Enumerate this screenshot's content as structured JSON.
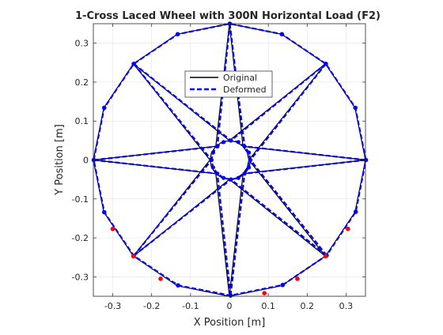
{
  "chart_data": {
    "type": "line",
    "title": "1-Cross Laced Wheel with 300N Horizontal Load (F2)",
    "xlabel": "X Position [m]",
    "ylabel": "Y Position [m]",
    "xlim": [
      -0.35,
      0.35
    ],
    "ylim": [
      -0.35,
      0.35
    ],
    "xticks": [
      -0.3,
      -0.2,
      -0.1,
      0,
      0.1,
      0.2,
      0.3
    ],
    "yticks": [
      -0.3,
      -0.2,
      -0.1,
      0,
      0.1,
      0.2,
      0.3
    ],
    "grid": true,
    "legend": {
      "location": "upper center",
      "entries": [
        "Original",
        "Deformed"
      ]
    },
    "colors": {
      "original": "#000000",
      "deformed": "#0000ff",
      "marker": "#0000ff",
      "highlight": "#ff0000"
    },
    "rim_radius": 0.35,
    "hub_radius": 0.05,
    "node_count": 16,
    "series": [
      {
        "name": "Original",
        "style": "solid",
        "rim": [
          [
            0.35,
            0
          ],
          [
            0.323,
            0.134
          ],
          [
            0.247,
            0.247
          ],
          [
            0.134,
            0.323
          ],
          [
            0,
            0.35
          ],
          [
            -0.134,
            0.323
          ],
          [
            -0.247,
            0.247
          ],
          [
            -0.323,
            0.134
          ],
          [
            -0.35,
            0
          ],
          [
            -0.323,
            -0.134
          ],
          [
            -0.247,
            -0.247
          ],
          [
            -0.134,
            -0.323
          ],
          [
            0,
            -0.35
          ],
          [
            0.134,
            -0.323
          ],
          [
            0.247,
            -0.247
          ],
          [
            0.323,
            -0.134
          ]
        ],
        "hub": [
          [
            0.05,
            0
          ],
          [
            0.046,
            0.019
          ],
          [
            0.035,
            0.035
          ],
          [
            0.019,
            0.046
          ],
          [
            0,
            0.05
          ],
          [
            -0.019,
            0.046
          ],
          [
            -0.035,
            0.035
          ],
          [
            -0.046,
            0.019
          ],
          [
            -0.05,
            0
          ],
          [
            -0.046,
            -0.019
          ],
          [
            -0.035,
            -0.035
          ],
          [
            -0.019,
            -0.046
          ],
          [
            0,
            -0.05
          ],
          [
            0.019,
            -0.046
          ],
          [
            0.035,
            -0.035
          ],
          [
            0.046,
            -0.019
          ]
        ],
        "spoke_pairs": [
          [
            0,
            14
          ],
          [
            2,
            16
          ],
          [
            4,
            2
          ],
          [
            6,
            4
          ],
          [
            8,
            6
          ],
          [
            10,
            8
          ],
          [
            12,
            10
          ],
          [
            14,
            12
          ]
        ]
      },
      {
        "name": "Deformed",
        "style": "dashed",
        "rim": [
          [
            0.351,
            0
          ],
          [
            0.324,
            0.134
          ],
          [
            0.248,
            0.247
          ],
          [
            0.135,
            0.323
          ],
          [
            0.001,
            0.35
          ],
          [
            -0.133,
            0.323
          ],
          [
            -0.246,
            0.247
          ],
          [
            -0.322,
            0.134
          ],
          [
            -0.349,
            0
          ],
          [
            -0.322,
            -0.134
          ],
          [
            -0.246,
            -0.246
          ],
          [
            -0.132,
            -0.322
          ],
          [
            0.003,
            -0.348
          ],
          [
            0.137,
            -0.321
          ],
          [
            0.25,
            -0.245
          ],
          [
            0.325,
            -0.133
          ]
        ],
        "hub": [
          [
            0.054,
            0
          ],
          [
            0.05,
            0.019
          ],
          [
            0.039,
            0.035
          ],
          [
            0.023,
            0.046
          ],
          [
            0.004,
            0.05
          ],
          [
            -0.015,
            0.046
          ],
          [
            -0.031,
            0.035
          ],
          [
            -0.042,
            0.019
          ],
          [
            -0.046,
            0
          ],
          [
            -0.042,
            -0.019
          ],
          [
            -0.031,
            -0.035
          ],
          [
            -0.015,
            -0.046
          ],
          [
            0.004,
            -0.05
          ],
          [
            0.023,
            -0.046
          ],
          [
            0.039,
            -0.035
          ],
          [
            0.05,
            -0.019
          ]
        ]
      }
    ],
    "highlighted_nodes": [
      [
        -0.3,
        -0.177
      ],
      [
        -0.247,
        -0.247
      ],
      [
        -0.177,
        -0.305
      ],
      [
        0.09,
        -0.342
      ],
      [
        0.175,
        -0.305
      ],
      [
        0.247,
        -0.247
      ],
      [
        0.305,
        -0.177
      ]
    ]
  }
}
